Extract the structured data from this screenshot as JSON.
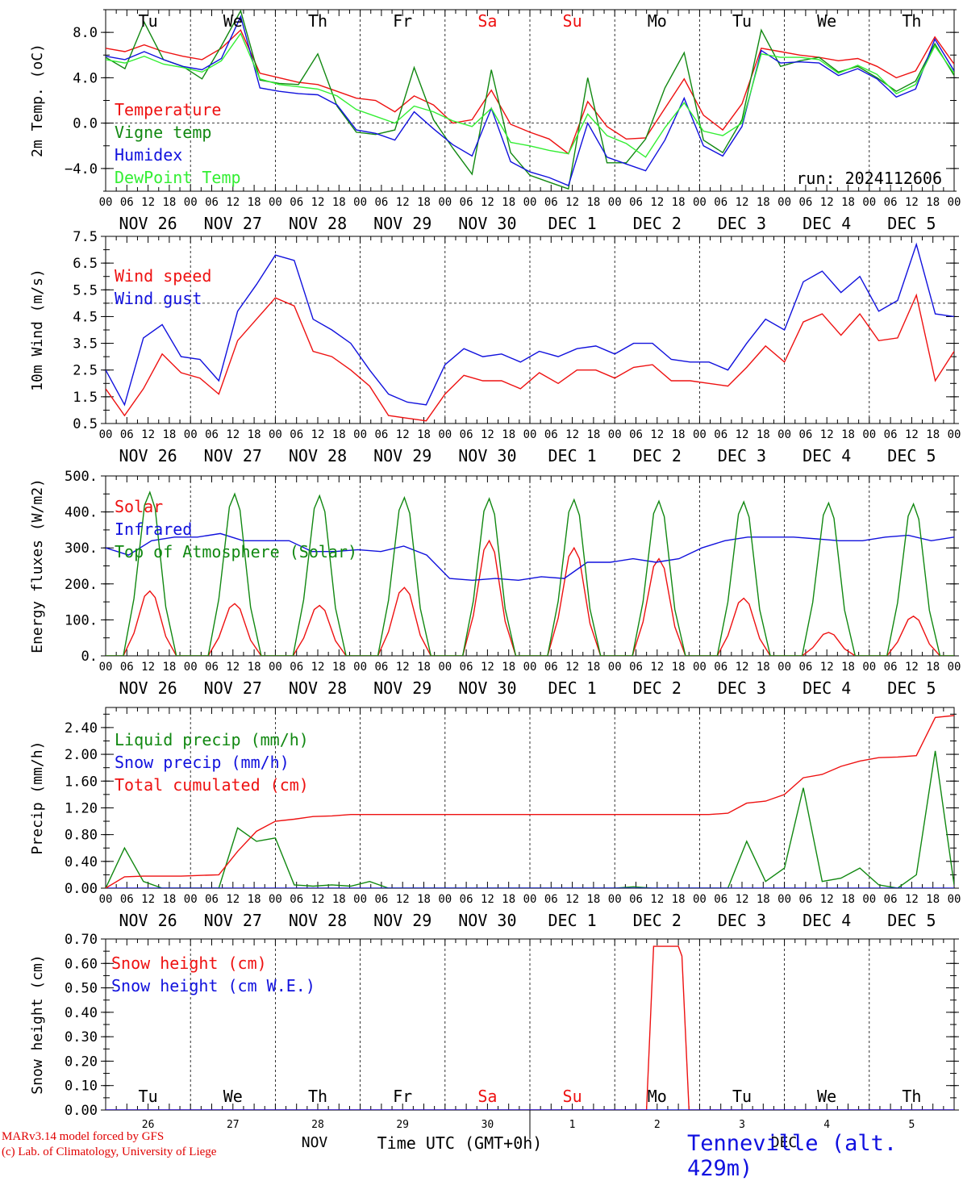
{
  "colors": {
    "red": "#ee1111",
    "darkgreen": "#118811",
    "blue": "#1111dd",
    "lightgreen": "#33ee33",
    "axis": "#000000"
  },
  "weekdays": [
    "Tu",
    "We",
    "Th",
    "Fr",
    "Sa",
    "Su",
    "Mo",
    "Tu",
    "We",
    "Th"
  ],
  "weekday_colors": [
    "#000000",
    "#000000",
    "#000000",
    "#000000",
    "#ee1111",
    "#ee1111",
    "#000000",
    "#000000",
    "#000000",
    "#000000"
  ],
  "dates": [
    "NOV 26",
    "NOV 27",
    "NOV 28",
    "NOV 29",
    "NOV 30",
    "DEC  1",
    "DEC  2",
    "DEC  3",
    "DEC  4",
    "DEC  5"
  ],
  "hour_labels": [
    "00",
    "06",
    "12",
    "18"
  ],
  "run_label": "run: 2024112606",
  "bottom": {
    "day_numbers": [
      "26",
      "27",
      "28",
      "29",
      "30",
      "1",
      "2",
      "3",
      "4",
      "5"
    ],
    "month_left": "NOV",
    "month_right": "DEC",
    "axis_title": "Time UTC (GMT+0h)",
    "credit_line1": "MARv3.14 model forced by GFS",
    "credit_line2": "(c) Lab. of Climatology, University of Liege",
    "station": "Tenneville (alt. 429m)"
  },
  "chart_data": [
    {
      "type": "line",
      "ylabel": "2m Temp. (oC)",
      "ylim": [
        -6.0,
        10.0
      ],
      "yticks": [
        -4.0,
        0.0,
        4.0,
        8.0
      ],
      "ytick_labels": [
        "−4.0",
        "0.0",
        "4.0",
        "8.0"
      ],
      "ref_line": 0.0,
      "x_hours": "0 to 240 every 6h from NOV 26 00 UTC",
      "series": [
        {
          "name": "Temperature",
          "color": "#ee1111",
          "values": [
            6.6,
            6.3,
            6.9,
            6.3,
            5.9,
            5.6,
            6.6,
            8.2,
            4.4,
            4.0,
            3.6,
            3.4,
            2.8,
            2.2,
            2.0,
            1.0,
            2.4,
            1.6,
            0.0,
            0.3,
            2.9,
            -0.1,
            -0.8,
            -1.4,
            -2.7,
            1.9,
            -0.3,
            -1.4,
            -1.3,
            1.3,
            3.9,
            0.7,
            -0.6,
            1.7,
            6.6,
            6.3,
            6.0,
            5.8,
            5.5,
            5.7,
            5.0,
            4.0,
            4.6,
            7.6,
            5.2
          ]
        },
        {
          "name": "Vigne temp",
          "color": "#118811",
          "values": [
            5.8,
            4.8,
            8.9,
            5.6,
            5.0,
            3.9,
            6.8,
            9.9,
            3.8,
            3.5,
            3.4,
            6.1,
            1.5,
            -0.8,
            -1.0,
            -0.6,
            4.9,
            0.3,
            -2.2,
            -4.5,
            4.7,
            -2.6,
            -4.6,
            -5.2,
            -5.8,
            4.0,
            -3.5,
            -3.5,
            -1.4,
            3.1,
            6.2,
            -1.5,
            -2.6,
            0.3,
            8.2,
            5.0,
            5.5,
            5.8,
            4.5,
            5.0,
            4.0,
            2.8,
            3.7,
            7.0,
            4.2
          ]
        },
        {
          "name": "Humidex",
          "color": "#1111dd",
          "values": [
            5.9,
            5.6,
            6.3,
            5.6,
            5.0,
            4.7,
            5.7,
            9.4,
            3.1,
            2.8,
            2.6,
            2.5,
            1.6,
            -0.6,
            -0.9,
            -1.5,
            1.0,
            -0.5,
            -1.9,
            -2.9,
            1.3,
            -3.4,
            -4.3,
            -4.8,
            -5.5,
            0.0,
            -3.0,
            -3.6,
            -4.2,
            -1.5,
            2.2,
            -2.0,
            -2.9,
            -0.3,
            6.4,
            5.3,
            5.4,
            5.3,
            4.2,
            4.8,
            3.9,
            2.3,
            3.0,
            7.4,
            4.6
          ]
        },
        {
          "name": "DewPoint Temp",
          "color": "#33ee33",
          "values": [
            5.6,
            5.3,
            5.9,
            5.2,
            4.9,
            4.5,
            5.5,
            7.9,
            3.9,
            3.4,
            3.2,
            3.0,
            2.4,
            1.2,
            0.6,
            0.0,
            1.5,
            1.0,
            0.2,
            -0.3,
            1.3,
            -1.7,
            -2.0,
            -2.4,
            -2.7,
            0.8,
            -1.1,
            -1.8,
            -3.0,
            -0.4,
            1.8,
            -0.7,
            -1.1,
            0.0,
            6.1,
            5.8,
            5.8,
            5.6,
            4.4,
            5.1,
            4.3,
            2.6,
            3.4,
            6.8,
            4.4
          ]
        }
      ]
    },
    {
      "type": "line",
      "ylabel": "10m Wind (m/s)",
      "ylim": [
        0.5,
        7.5
      ],
      "yticks": [
        0.5,
        1.5,
        2.5,
        3.5,
        4.5,
        5.5,
        6.5,
        7.5
      ],
      "ytick_labels": [
        "0.5",
        "1.5",
        "2.5",
        "3.5",
        "4.5",
        "5.5",
        "6.5",
        "7.5"
      ],
      "ref_line": 5.0,
      "series": [
        {
          "name": "Wind speed",
          "color": "#ee1111",
          "values": [
            1.8,
            0.8,
            1.8,
            3.1,
            2.4,
            2.2,
            1.6,
            3.6,
            4.4,
            5.2,
            4.9,
            3.2,
            3.0,
            2.5,
            1.9,
            0.8,
            0.7,
            0.6,
            1.6,
            2.3,
            2.1,
            2.1,
            1.8,
            2.4,
            2.0,
            2.5,
            2.5,
            2.2,
            2.6,
            2.7,
            2.1,
            2.1,
            2.0,
            1.9,
            2.6,
            3.4,
            2.8,
            4.3,
            4.6,
            3.8,
            4.6,
            3.6,
            3.7,
            5.3,
            2.1,
            3.2
          ]
        },
        {
          "name": "Wind gust",
          "color": "#1111dd",
          "values": [
            2.5,
            1.2,
            3.7,
            4.2,
            3.0,
            2.9,
            2.1,
            4.7,
            5.7,
            6.8,
            6.6,
            4.4,
            4.0,
            3.5,
            2.5,
            1.6,
            1.3,
            1.2,
            2.7,
            3.3,
            3.0,
            3.1,
            2.8,
            3.2,
            3.0,
            3.3,
            3.4,
            3.1,
            3.5,
            3.5,
            2.9,
            2.8,
            2.8,
            2.5,
            3.5,
            4.4,
            4.0,
            5.8,
            6.2,
            5.4,
            6.0,
            4.7,
            5.1,
            7.2,
            4.6,
            4.5
          ]
        }
      ]
    },
    {
      "type": "line",
      "ylabel": "Energy fluxes (W/m2)",
      "ylim": [
        0,
        500
      ],
      "yticks": [
        0,
        100,
        200,
        300,
        400,
        500
      ],
      "ytick_labels": [
        "0.",
        "100.",
        "200.",
        "300.",
        "400.",
        "500."
      ],
      "series": [
        {
          "name": "Solar",
          "color": "#ee1111",
          "daily_peaks": [
            180,
            145,
            140,
            190,
            320,
            300,
            270,
            160,
            65,
            110
          ]
        },
        {
          "name": "Infrared",
          "color": "#1111dd",
          "values": [
            300,
            280,
            320,
            330,
            330,
            340,
            320,
            320,
            320,
            290,
            290,
            295,
            290,
            305,
            280,
            215,
            210,
            215,
            210,
            220,
            215,
            260,
            260,
            270,
            260,
            270,
            300,
            320,
            330,
            330,
            330,
            325,
            320,
            320,
            330,
            335,
            320,
            330
          ]
        },
        {
          "name": "Top of Atmosphere (Solar)",
          "color": "#118811",
          "daily_peaks": [
            455,
            450,
            445,
            440,
            437,
            434,
            430,
            428,
            425,
            422
          ]
        }
      ]
    },
    {
      "type": "line",
      "ylabel": "Precip (mm/h)",
      "ylim": [
        0.0,
        2.7
      ],
      "yticks": [
        0.0,
        0.4,
        0.8,
        1.2,
        1.6,
        2.0,
        2.4
      ],
      "ytick_labels": [
        "0.00",
        "0.40",
        "0.80",
        "1.20",
        "1.60",
        "2.00",
        "2.40"
      ],
      "series": [
        {
          "name": "Liquid precip (mm/h)",
          "color": "#118811",
          "values": [
            0,
            0.6,
            0.1,
            0,
            0,
            0,
            0,
            0.9,
            0.7,
            0.75,
            0.05,
            0.03,
            0.05,
            0.03,
            0.1,
            0,
            0,
            0,
            0,
            0,
            0,
            0,
            0,
            0,
            0,
            0,
            0,
            0,
            0.02,
            0,
            0,
            0,
            0,
            0,
            0.7,
            0.1,
            0.3,
            1.5,
            0.1,
            0.15,
            0.3,
            0.05,
            0,
            0.2,
            2.05,
            0.05
          ]
        },
        {
          "name": "Snow precip (mm/h)",
          "color": "#1111dd",
          "values": [
            0,
            0,
            0,
            0,
            0,
            0,
            0,
            0,
            0,
            0,
            0,
            0,
            0,
            0,
            0,
            0,
            0,
            0,
            0,
            0,
            0,
            0,
            0,
            0,
            0,
            0,
            0,
            0,
            0,
            0,
            0,
            0,
            0,
            0,
            0,
            0,
            0,
            0,
            0,
            0,
            0,
            0,
            0,
            0,
            0,
            0
          ]
        },
        {
          "name": "Total cumulated (cm)",
          "color": "#ee1111",
          "values": [
            0.0,
            0.17,
            0.18,
            0.18,
            0.18,
            0.19,
            0.2,
            0.55,
            0.85,
            1.0,
            1.03,
            1.07,
            1.08,
            1.1,
            1.1,
            1.1,
            1.1,
            1.1,
            1.1,
            1.1,
            1.1,
            1.1,
            1.1,
            1.1,
            1.1,
            1.1,
            1.1,
            1.1,
            1.1,
            1.1,
            1.1,
            1.1,
            1.1,
            1.12,
            1.27,
            1.3,
            1.4,
            1.65,
            1.7,
            1.82,
            1.9,
            1.95,
            1.96,
            1.98,
            2.55,
            2.58
          ]
        }
      ]
    },
    {
      "type": "line",
      "ylabel": "Snow height (cm)",
      "ylim": [
        0.0,
        0.7
      ],
      "yticks": [
        0.0,
        0.1,
        0.2,
        0.3,
        0.4,
        0.5,
        0.6,
        0.7
      ],
      "ytick_labels": [
        "0.00",
        "0.10",
        "0.20",
        "0.30",
        "0.40",
        "0.50",
        "0.60",
        "0.70"
      ],
      "series": [
        {
          "name": "Snow height (cm)",
          "color": "#ee1111",
          "points": [
            [
              0,
              0
            ],
            [
              153,
              0
            ],
            [
              155,
              0.67
            ],
            [
              162,
              0.67
            ],
            [
              163,
              0.63
            ],
            [
              165,
              0
            ],
            [
              240,
              0
            ]
          ]
        },
        {
          "name": "Snow height (cm W.E.)",
          "color": "#1111dd",
          "points": [
            [
              0,
              0
            ],
            [
              240,
              0
            ]
          ]
        }
      ]
    }
  ]
}
